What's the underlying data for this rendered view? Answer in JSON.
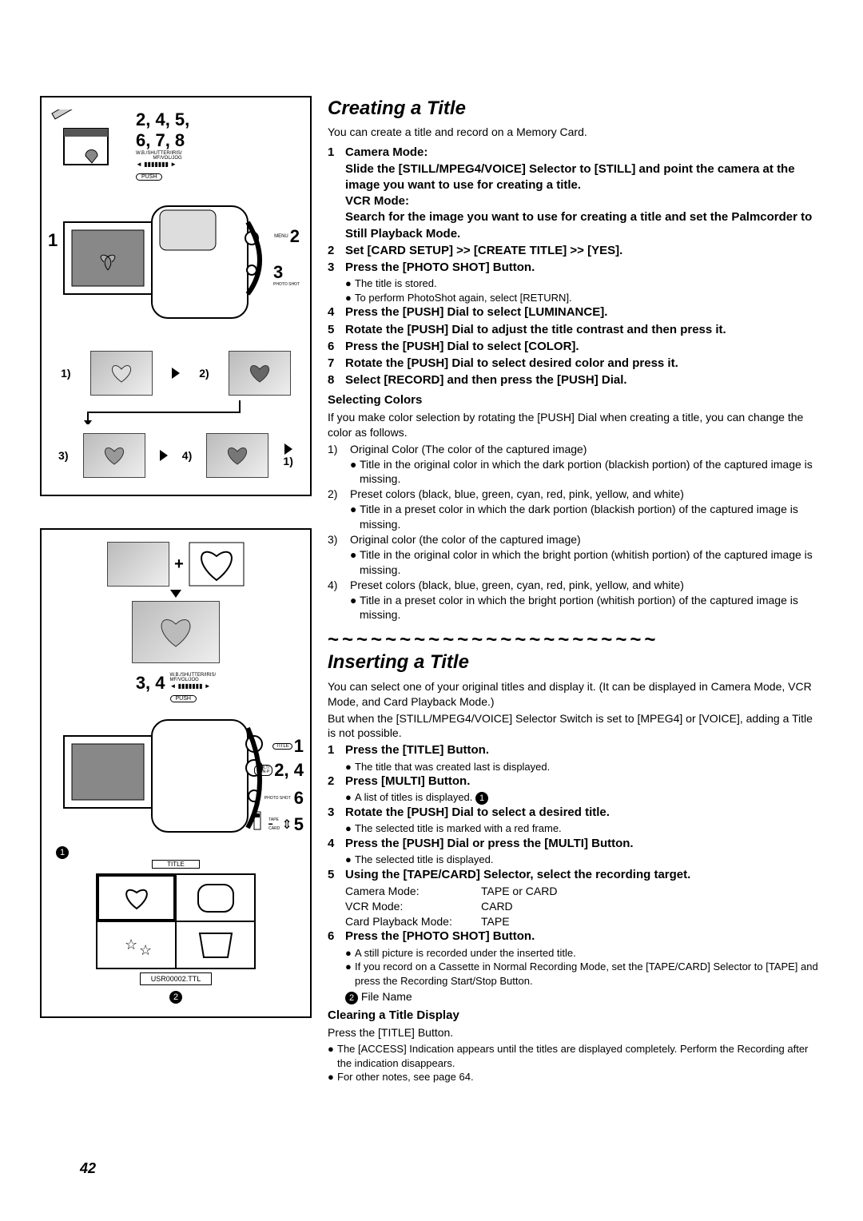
{
  "page_number": "42",
  "section1": {
    "title": "Creating a Title",
    "intro": "You can create a title and record on a Memory Card.",
    "steps": [
      {
        "n": "1",
        "bold": "Camera Mode:\nSlide the [STILL/MPEG4/VOICE] Selector to [STILL] and point the camera at the image you want to use for creating a title.\nVCR Mode:\nSearch for the image you want to use for creating a title and set the Palmcorder to Still Playback Mode."
      },
      {
        "n": "2",
        "bold": "Set [CARD SETUP] >> [CREATE TITLE] >> [YES]."
      },
      {
        "n": "3",
        "bold": "Press the [PHOTO SHOT] Button.",
        "bullets": [
          "The title is stored.",
          "To perform PhotoShot again, select [RETURN]."
        ]
      },
      {
        "n": "4",
        "bold": "Press the [PUSH] Dial to select [LUMINANCE]."
      },
      {
        "n": "5",
        "bold": "Rotate the [PUSH] Dial to adjust the title contrast and then press it."
      },
      {
        "n": "6",
        "bold": "Press the [PUSH] Dial to select [COLOR]."
      },
      {
        "n": "7",
        "bold": "Rotate the [PUSH] Dial to select desired color and press it."
      },
      {
        "n": "8",
        "bold": "Select [RECORD] and then press the [PUSH] Dial."
      }
    ],
    "selecting_colors": {
      "heading": "Selecting Colors",
      "intro": "If you make color selection by rotating the [PUSH] Dial when creating a title, you can change the color as follows.",
      "items": [
        {
          "n": "1)",
          "text": "Original Color (The color of the captured image)",
          "bullet": "Title in the original color in which the dark portion (blackish portion) of the captured image is missing."
        },
        {
          "n": "2)",
          "text": "Preset colors (black, blue, green, cyan, red, pink, yellow, and white)",
          "bullet": "Title in a preset color in which the dark portion (blackish portion) of the captured image is missing."
        },
        {
          "n": "3)",
          "text": "Original color (the color of the captured image)",
          "bullet": "Title in the original color in which the bright portion (whitish portion) of the captured image is missing."
        },
        {
          "n": "4)",
          "text": "Preset colors (black, blue, green, cyan, red, pink, yellow, and white)",
          "bullet": "Title in a preset color in which the bright portion (whitish portion) of the captured image is missing."
        }
      ]
    }
  },
  "separator": "~~~~~~~~~~~~~~~~~~~~~~~",
  "section2": {
    "title": "Inserting a Title",
    "intro1": "You can select one of your original titles and display it. (It can be displayed in Camera Mode, VCR Mode, and Card Playback Mode.)",
    "intro2": "But when the [STILL/MPEG4/VOICE] Selector Switch is set to [MPEG4] or [VOICE], adding a Title is not possible.",
    "steps": [
      {
        "n": "1",
        "bold": "Press the [TITLE] Button.",
        "bullets": [
          "The title that was created last is displayed."
        ]
      },
      {
        "n": "2",
        "bold": "Press [MULTI] Button.",
        "bullets_circled": [
          "A list of titles is displayed."
        ],
        "circled": "1"
      },
      {
        "n": "3",
        "bold": "Rotate the [PUSH] Dial to select a desired title.",
        "bullets": [
          "The selected title is marked with a red frame."
        ]
      },
      {
        "n": "4",
        "bold": "Press the [PUSH] Dial or press the [MULTI] Button.",
        "bullets": [
          "The selected title is displayed."
        ]
      },
      {
        "n": "5",
        "bold": "Using the [TAPE/CARD] Selector, select the recording target.",
        "modes": [
          [
            "Camera Mode:",
            "TAPE or CARD"
          ],
          [
            "VCR Mode:",
            "CARD"
          ],
          [
            "Card Playback Mode:",
            "TAPE"
          ]
        ]
      },
      {
        "n": "6",
        "bold": "Press the [PHOTO SHOT] Button.",
        "bullets": [
          "A still picture is recorded under the inserted title.",
          "If you record on a Cassette in Normal Recording Mode, set the [TAPE/CARD] Selector to [TAPE] and press the Recording Start/Stop Button."
        ]
      }
    ],
    "file_name_label": "File Name",
    "file_name_circled": "2",
    "clearing": {
      "heading": "Clearing a Title Display",
      "text": "Press the [TITLE] Button.",
      "bullets": [
        "The [ACCESS] Indication appears until the titles are displayed completely. Perform the Recording after the indication disappears.",
        "For other notes, see page 64."
      ]
    }
  },
  "diagram": {
    "top_label": "2, 4, 5,\n6, 7, 8",
    "dial_label": "W.B./SHUTTER/IRIS/\nMF/VOL/JOG",
    "push_label": "PUSH",
    "callout_1": "1",
    "callout_2": "2",
    "callout_3": "3",
    "menu_label": "MENU",
    "photo_label": "PHOTO SHOT",
    "thumbs": [
      "1)",
      "2)",
      "3)",
      "4)",
      "1)"
    ],
    "bottom": {
      "dial_label": "W.B./SHUTTER/IRIS/\nMF/VOL/JOG",
      "push_label": "PUSH",
      "label_34": "3, 4",
      "c1": "1",
      "c24": "2, 4",
      "c6": "6",
      "c5": "5",
      "title_btn": "TITLE",
      "multi_btn": "MULTI\nP-IN-P",
      "photo_label": "PHOTO SHOT",
      "tape": "TAPE",
      "card": "CARD",
      "circled1": "1",
      "circled2": "2",
      "file_name": "USR00002.TTL",
      "title_label": "TITLE"
    }
  }
}
